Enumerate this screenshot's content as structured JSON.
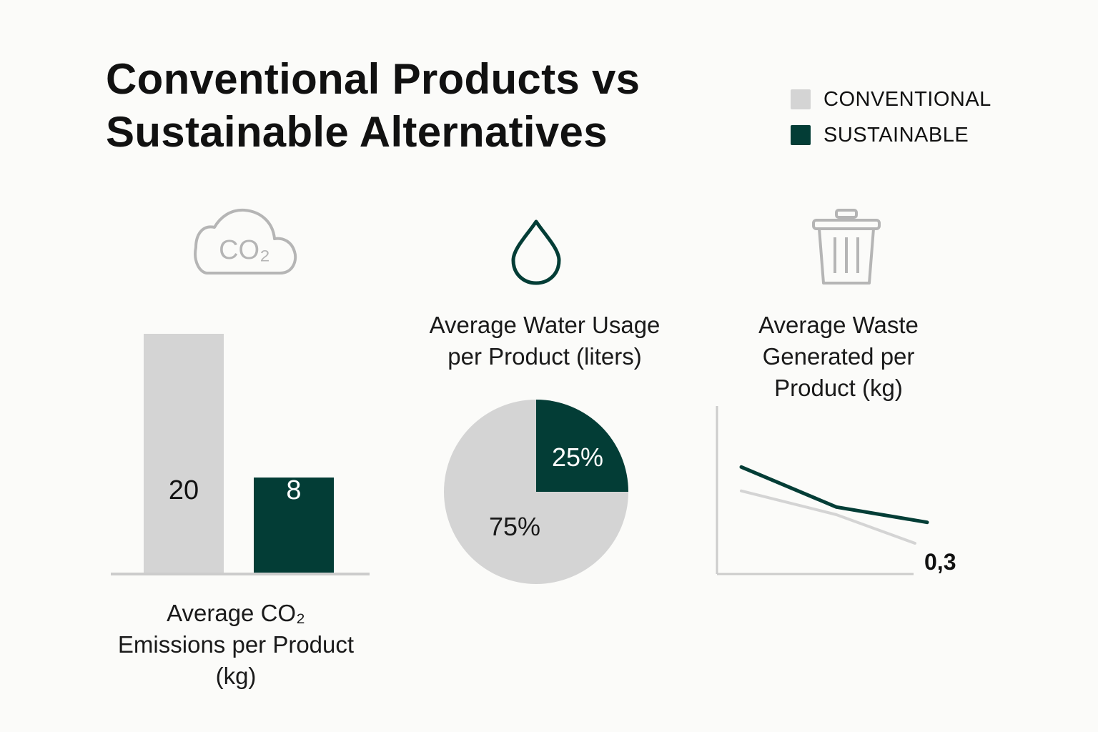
{
  "title": {
    "line1": "Conventional Products vs",
    "line2": "Sustainable Alternatives"
  },
  "legend": [
    {
      "label": "CONVENTIONAL",
      "color": "#d4d4d4"
    },
    {
      "label": "SUSTAINABLE",
      "color": "#033d36"
    }
  ],
  "colors": {
    "conventional": "#d4d4d4",
    "sustainable": "#033d36",
    "axis": "#cccccc",
    "icon_gray": "#b5b5b5"
  },
  "icons": {
    "co2": {
      "name": "cloud-co2-icon",
      "text": "CO₂"
    },
    "water": {
      "name": "water-drop-icon"
    },
    "waste": {
      "name": "trash-can-icon"
    }
  },
  "chart_data": [
    {
      "type": "bar",
      "categories": [
        "Conventional",
        "Sustainable"
      ],
      "values": [
        20,
        8
      ],
      "data_labels": [
        "20",
        "8"
      ],
      "ylim": [
        0,
        20
      ],
      "caption": {
        "line1": "Average CO₂",
        "line2": "Emissions per Product",
        "line3": "(kg)"
      }
    },
    {
      "type": "pie",
      "slices": [
        {
          "label": "75%",
          "value": 75,
          "series": "conventional"
        },
        {
          "label": "25%",
          "value": 25,
          "series": "sustainable"
        }
      ],
      "caption": {
        "line1": "Average Water Usage",
        "line2": "per Product (liters)"
      }
    },
    {
      "type": "line",
      "x": [
        1,
        2,
        3
      ],
      "series": [
        {
          "name": "CONVENTIONAL",
          "values": [
            0.85,
            0.6,
            0.3
          ]
        },
        {
          "name": "SUSTAINABLE",
          "values": [
            1.1,
            0.68,
            0.52
          ]
        }
      ],
      "ylim": [
        0,
        1.5
      ],
      "end_label": "0,3",
      "caption": {
        "line1": "Average Waste",
        "line2": "Generated per",
        "line3": "Product (kg)"
      }
    }
  ]
}
